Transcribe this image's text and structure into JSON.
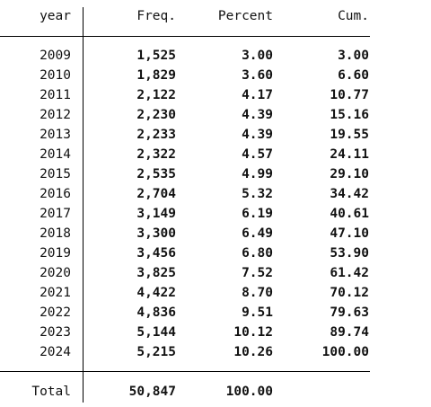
{
  "table": {
    "headers": {
      "year": "year",
      "freq": "Freq.",
      "percent": "Percent",
      "cum": "Cum."
    },
    "rows": [
      {
        "year": "2009",
        "freq": "1,525",
        "percent": "3.00",
        "cum": "3.00"
      },
      {
        "year": "2010",
        "freq": "1,829",
        "percent": "3.60",
        "cum": "6.60"
      },
      {
        "year": "2011",
        "freq": "2,122",
        "percent": "4.17",
        "cum": "10.77"
      },
      {
        "year": "2012",
        "freq": "2,230",
        "percent": "4.39",
        "cum": "15.16"
      },
      {
        "year": "2013",
        "freq": "2,233",
        "percent": "4.39",
        "cum": "19.55"
      },
      {
        "year": "2014",
        "freq": "2,322",
        "percent": "4.57",
        "cum": "24.11"
      },
      {
        "year": "2015",
        "freq": "2,535",
        "percent": "4.99",
        "cum": "29.10"
      },
      {
        "year": "2016",
        "freq": "2,704",
        "percent": "5.32",
        "cum": "34.42"
      },
      {
        "year": "2017",
        "freq": "3,149",
        "percent": "6.19",
        "cum": "40.61"
      },
      {
        "year": "2018",
        "freq": "3,300",
        "percent": "6.49",
        "cum": "47.10"
      },
      {
        "year": "2019",
        "freq": "3,456",
        "percent": "6.80",
        "cum": "53.90"
      },
      {
        "year": "2020",
        "freq": "3,825",
        "percent": "7.52",
        "cum": "61.42"
      },
      {
        "year": "2021",
        "freq": "4,422",
        "percent": "8.70",
        "cum": "70.12"
      },
      {
        "year": "2022",
        "freq": "4,836",
        "percent": "9.51",
        "cum": "79.63"
      },
      {
        "year": "2023",
        "freq": "5,144",
        "percent": "10.12",
        "cum": "89.74"
      },
      {
        "year": "2024",
        "freq": "5,215",
        "percent": "10.26",
        "cum": "100.00"
      }
    ],
    "total": {
      "label": "Total",
      "freq": "50,847",
      "percent": "100.00"
    }
  }
}
